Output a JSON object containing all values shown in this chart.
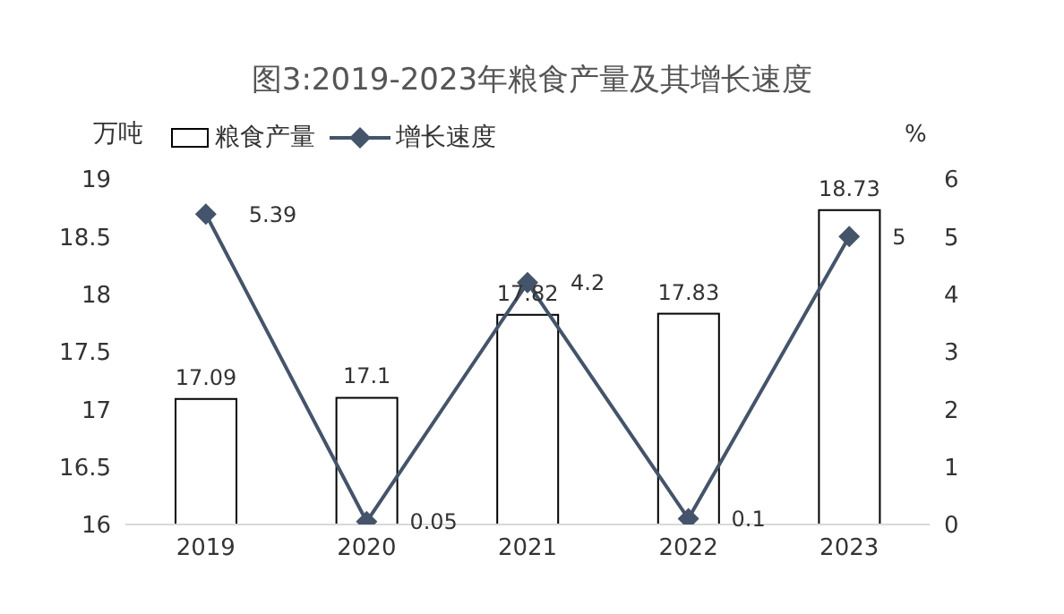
{
  "chart_data": {
    "type": "bar",
    "title": "图3:2019-2023年粮食产量及其增长速度",
    "ylabel": "万吨",
    "y2label": "%",
    "categories": [
      "2019",
      "2020",
      "2021",
      "2022",
      "2023"
    ],
    "series": [
      {
        "name": "粮食产量",
        "color": "#ffffff",
        "values": [
          17.09,
          17.1,
          17.82,
          17.83,
          18.73
        ]
      },
      {
        "name": "增长速度",
        "type": "line",
        "axis": "y2",
        "color": "#44546a",
        "values": [
          5.39,
          0.05,
          4.2,
          0.1,
          5
        ]
      }
    ],
    "ylim": [
      16,
      19
    ],
    "yticks": [
      16,
      16.5,
      17,
      17.5,
      18,
      18.5,
      19
    ],
    "y2lim": [
      0,
      6
    ],
    "y2ticks": [
      0,
      1,
      2,
      3,
      4,
      5,
      6
    ],
    "data_labels": true,
    "legend": "top left",
    "marker": "diamond",
    "grid": false
  }
}
